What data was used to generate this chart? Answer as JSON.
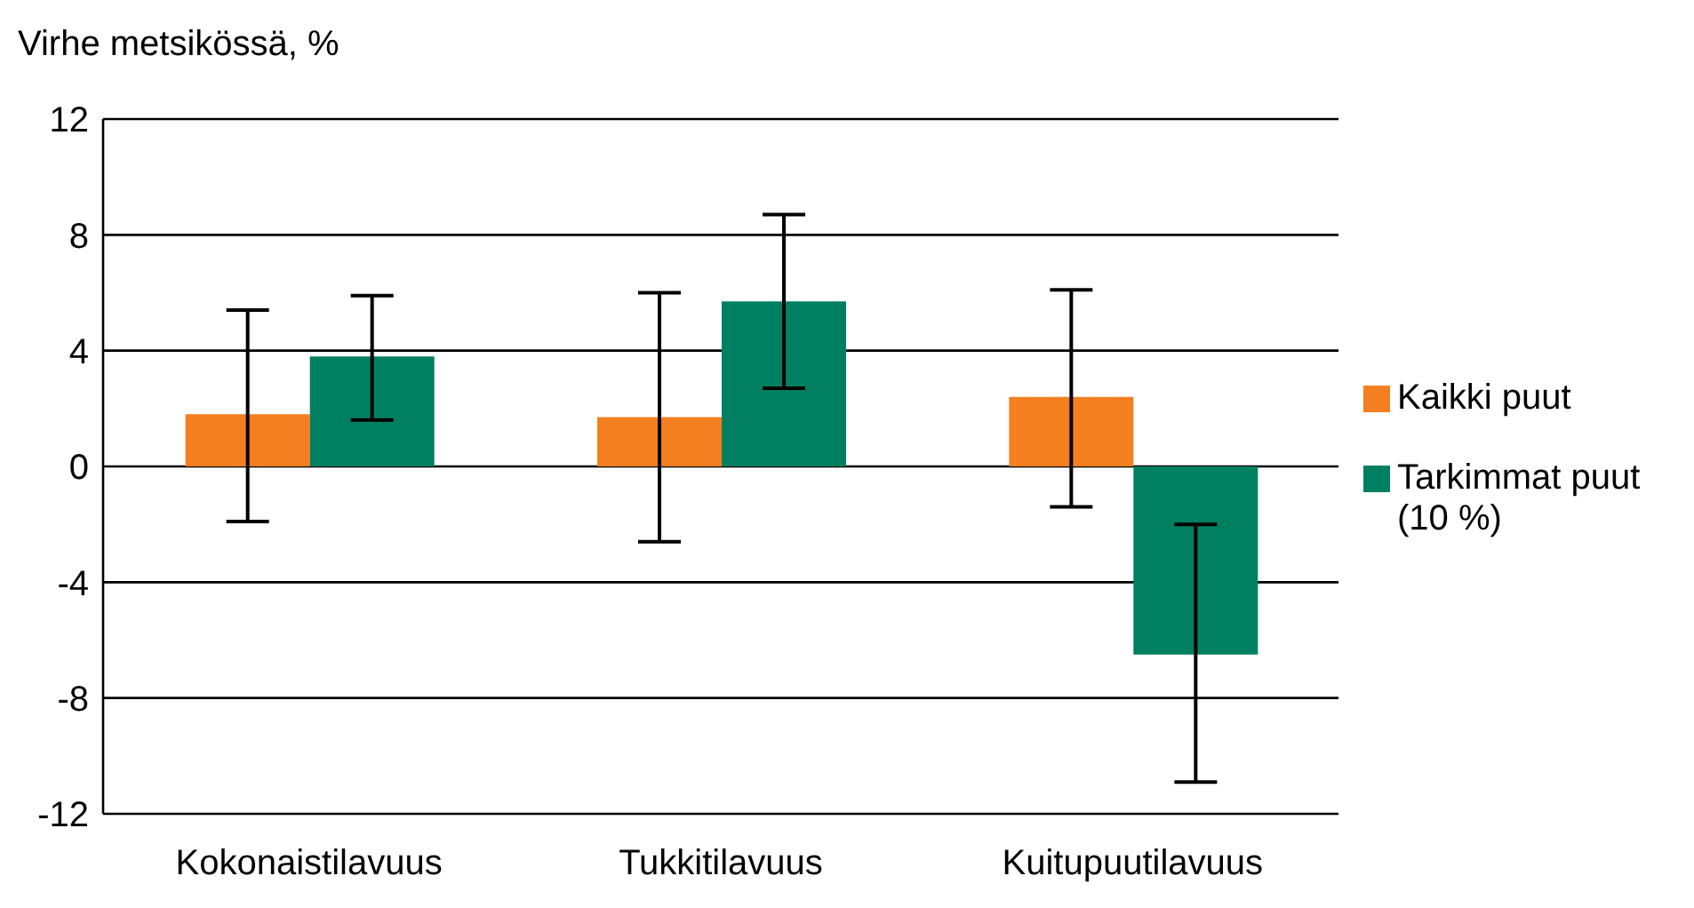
{
  "chart_data": {
    "type": "bar",
    "ylabel": "Virhe metsikössä, %",
    "categories": [
      "Kokonaistilavuus",
      "Tukkitilavuus",
      "Kuitupuutilavuus"
    ],
    "series": [
      {
        "name": "Kaikki puut",
        "color": "#f47f20",
        "values": [
          1.8,
          1.7,
          2.4
        ],
        "errors": [
          [
            -1.9,
            5.4
          ],
          [
            -2.6,
            6.0
          ],
          [
            -1.4,
            6.1
          ]
        ]
      },
      {
        "name": "Tarkimmat puut (10 %)",
        "color": "#008060",
        "values": [
          3.8,
          5.7,
          -6.5
        ],
        "errors": [
          [
            1.6,
            5.9
          ],
          [
            2.7,
            8.7
          ],
          [
            -2.0,
            -10.9
          ]
        ]
      }
    ],
    "ylim": [
      -12,
      12
    ],
    "yticks": [
      -12,
      -8,
      -4,
      0,
      4,
      8,
      12
    ],
    "grid": "y",
    "legend": "right"
  }
}
